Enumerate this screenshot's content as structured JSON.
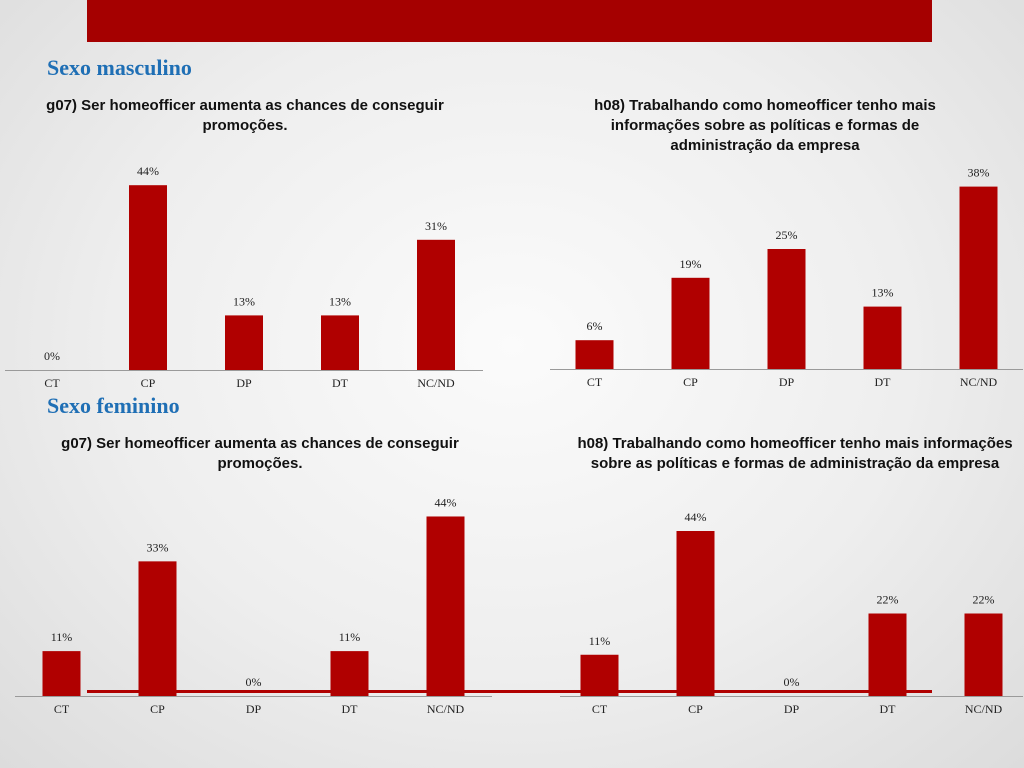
{
  "colors": {
    "bar": "#b00000",
    "header_bar": "#a50000",
    "section_title": "#1f6fb5",
    "axis": "#9a9a9a"
  },
  "sections": {
    "male": {
      "title": "Sexo masculino"
    },
    "female": {
      "title": "Sexo feminino"
    }
  },
  "chart_data": [
    {
      "type": "bar",
      "group": "Sexo masculino",
      "title": "g07) Ser homeofficer aumenta as chances de conseguir promoções.",
      "categories": [
        "CT",
        "CP",
        "DP",
        "DT",
        "NC/ND"
      ],
      "values": [
        0,
        44,
        13,
        13,
        31
      ],
      "labels": [
        "0%",
        "44%",
        "13%",
        "13%",
        "31%"
      ],
      "ylim": [
        0,
        50
      ],
      "unit": "%",
      "grid": false
    },
    {
      "type": "bar",
      "group": "Sexo masculino",
      "title": "h08) Trabalhando como homeofficer tenho mais informações sobre as políticas e formas de administração da empresa",
      "categories": [
        "CT",
        "CP",
        "DP",
        "DT",
        "NC/ND"
      ],
      "values": [
        6,
        19,
        25,
        13,
        38
      ],
      "labels": [
        "6%",
        "19%",
        "25%",
        "13%",
        "38%"
      ],
      "ylim": [
        0,
        45
      ],
      "unit": "%",
      "grid": false
    },
    {
      "type": "bar",
      "group": "Sexo feminino",
      "title": "g07) Ser homeofficer aumenta as chances de conseguir promoções.",
      "categories": [
        "CT",
        "CP",
        "DP",
        "DT",
        "NC/ND"
      ],
      "values": [
        11,
        33,
        0,
        11,
        44
      ],
      "labels": [
        "11%",
        "33%",
        "0%",
        "11%",
        "44%"
      ],
      "ylim": [
        0,
        50
      ],
      "unit": "%",
      "grid": false
    },
    {
      "type": "bar",
      "group": "Sexo feminino",
      "title": "h08) Trabalhando como homeofficer tenho mais informações sobre as políticas e formas de administração da empresa",
      "categories": [
        "CT",
        "CP",
        "DP",
        "DT",
        "NC/ND"
      ],
      "values": [
        11,
        44,
        0,
        22,
        22
      ],
      "labels": [
        "11%",
        "44%",
        "0%",
        "22%",
        "22%"
      ],
      "ylim": [
        0,
        50
      ],
      "unit": "%",
      "grid": false
    }
  ]
}
